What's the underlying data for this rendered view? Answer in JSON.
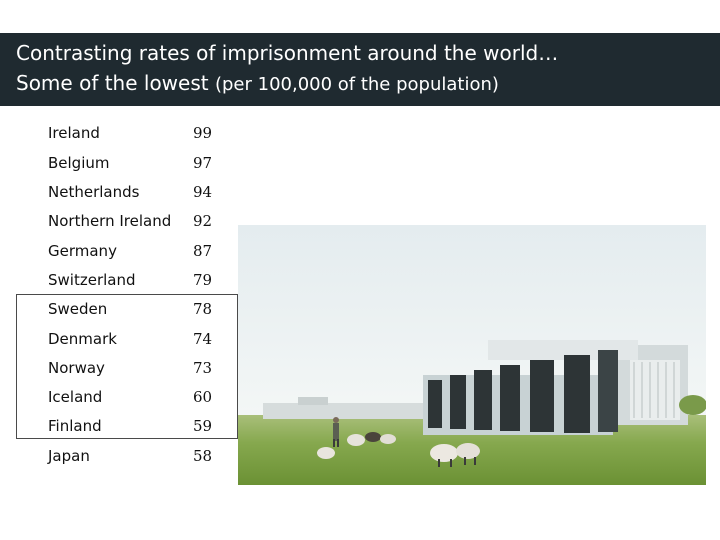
{
  "slide": {
    "title_line1": "Contrasting rates of imprisonment around the world…",
    "title_line2_main": "Some of the lowest ",
    "title_line2_sub": "(per 100,000 of the population)"
  },
  "rates": [
    {
      "country": "Ireland",
      "value": "99"
    },
    {
      "country": "Belgium",
      "value": "97"
    },
    {
      "country": "Netherlands",
      "value": "94"
    },
    {
      "country": "Northern Ireland",
      "value": "92"
    },
    {
      "country": "Germany",
      "value": "87"
    },
    {
      "country": "Switzerland",
      "value": "79"
    },
    {
      "country": "Sweden",
      "value": "78"
    },
    {
      "country": "Denmark",
      "value": "74"
    },
    {
      "country": "Norway",
      "value": "73"
    },
    {
      "country": "Iceland",
      "value": "60"
    },
    {
      "country": "Finland",
      "value": "59"
    },
    {
      "country": "Japan",
      "value": "58"
    }
  ],
  "colors": {
    "title_bar": "#1f2a30",
    "grass": "#7da24a",
    "sky": "#eef3f5"
  }
}
